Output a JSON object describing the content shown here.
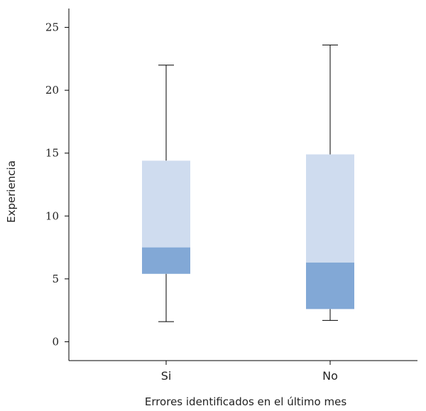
{
  "chart_data": {
    "type": "box",
    "xlabel": "Errores identificados en el último mes",
    "ylabel": "Experiencia",
    "ylim": [
      -1.5,
      26.5
    ],
    "yticks": [
      0,
      5,
      10,
      15,
      20,
      25
    ],
    "categories": [
      "Si",
      "No"
    ],
    "boxes": [
      {
        "category": "Si",
        "min": 1.6,
        "q1": 5.4,
        "median": 7.5,
        "q3": 14.4,
        "max": 22.0
      },
      {
        "category": "No",
        "min": 1.7,
        "q1": 2.6,
        "median": 6.3,
        "q3": 14.9,
        "max": 23.6
      }
    ],
    "grid": false,
    "colors": {
      "upper_box": "#cfdcef",
      "lower_box": "#82a8d6",
      "axis": "#000000"
    }
  }
}
